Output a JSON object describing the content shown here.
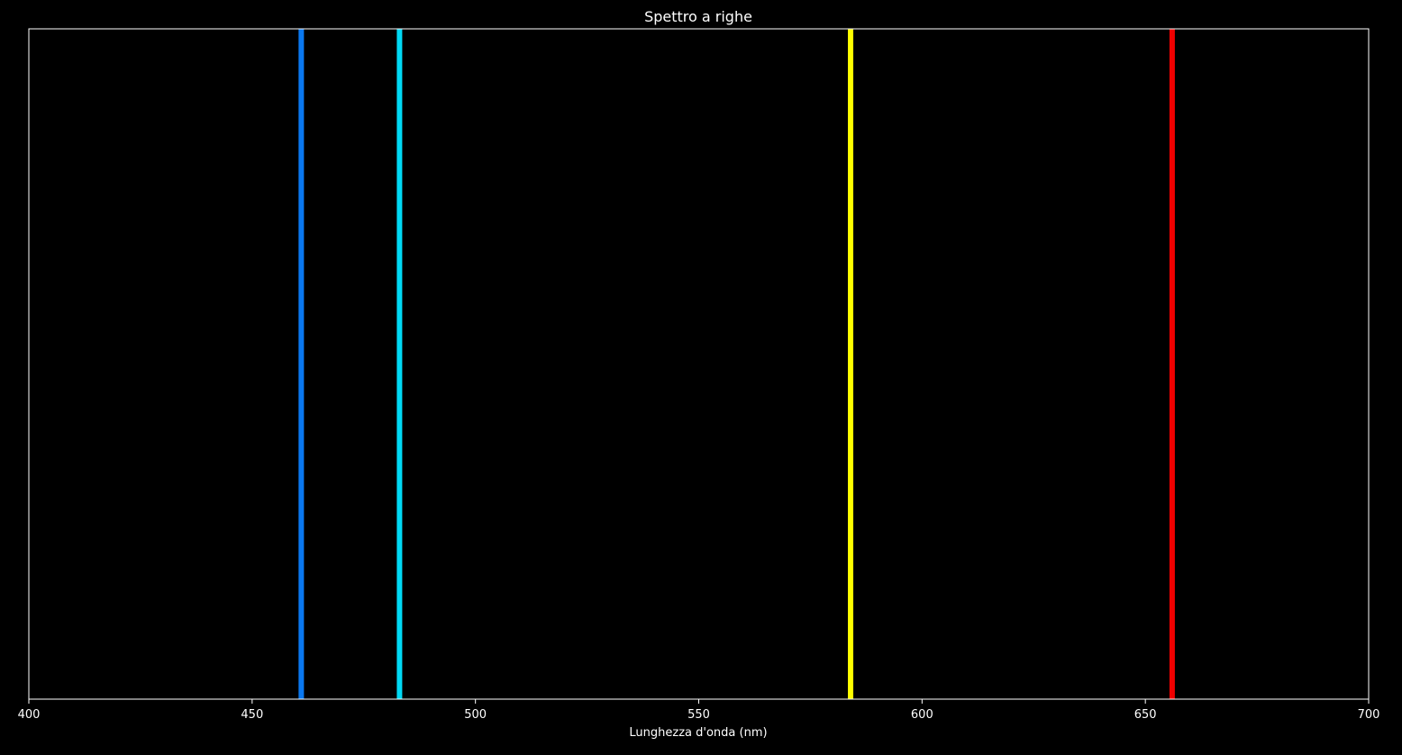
{
  "chart_data": {
    "type": "line",
    "title": "Spettro a righe",
    "xlabel": "Lunghezza d'onda (nm)",
    "ylabel": "",
    "xlim": [
      400,
      700
    ],
    "xticks": [
      "400",
      "450",
      "500",
      "550",
      "600",
      "650",
      "700"
    ],
    "grid": false,
    "background_color": "#000000",
    "axes_color": "#ffffff",
    "series": [
      {
        "x": 461,
        "color": "#0a78f0"
      },
      {
        "x": 483,
        "color": "#00d9f5"
      },
      {
        "x": 584,
        "color": "#ffff00"
      },
      {
        "x": 656,
        "color": "#f00000"
      }
    ]
  }
}
